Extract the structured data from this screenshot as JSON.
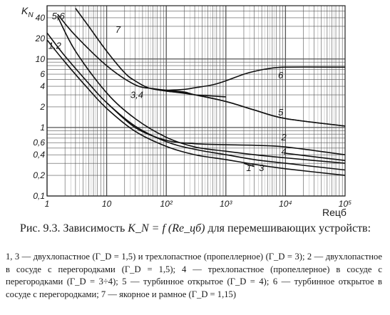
{
  "chart_data": {
    "type": "line",
    "xlabel": "Reцб",
    "ylabel": "K",
    "ylabel_sub": "N",
    "x_scale": "log",
    "y_scale": "log",
    "xlim": [
      1,
      100000
    ],
    "ylim": [
      0.1,
      60
    ],
    "grid": true,
    "x_ticks": [
      "1",
      "10",
      "10²",
      "10³",
      "10⁴",
      "10⁵"
    ],
    "y_ticks": [
      "0,1",
      "0,2",
      "0,4",
      "0,6",
      "1",
      "2",
      "4",
      "6",
      "10",
      "20",
      "40"
    ],
    "series": [
      {
        "name": "1,2",
        "label_x": 1.05,
        "label_y": 14,
        "x": [
          1,
          2,
          5,
          10,
          30,
          100,
          300,
          1000,
          3000,
          10000,
          100000
        ],
        "y": [
          24,
          11,
          4.4,
          2.3,
          1.05,
          0.62,
          0.48,
          0.4,
          0.34,
          0.3,
          0.24
        ]
      },
      {
        "name": "3",
        "label_x": 3600,
        "label_y": 0.23,
        "x": [
          1,
          2,
          5,
          10,
          30,
          100,
          300,
          1000,
          3000,
          10000,
          100000
        ],
        "y": [
          19,
          9,
          3.6,
          1.9,
          0.88,
          0.53,
          0.4,
          0.34,
          0.29,
          0.25,
          0.2
        ]
      },
      {
        "name": "3,4",
        "label_x": 25,
        "label_y": 2.7,
        "x": [
          1.5,
          3,
          10,
          30,
          100,
          300,
          1000,
          3000,
          10000,
          100000
        ],
        "y": [
          42,
          13,
          3.2,
          1.35,
          0.72,
          0.52,
          0.45,
          0.4,
          0.36,
          0.3
        ]
      },
      {
        "name": "4",
        "label_x": 8500,
        "label_y": 0.4,
        "x": [
          10000,
          100000
        ],
        "y": [
          0.42,
          0.33
        ]
      },
      {
        "name": "1'",
        "label_x": 2200,
        "label_y": 0.23,
        "x": [
          2000,
          3000
        ],
        "y": [
          0.3,
          0.27
        ]
      },
      {
        "name": "5,6",
        "label_x": 1.2,
        "label_y": 38,
        "x": [
          1.5,
          3,
          10,
          30,
          60,
          100,
          200,
          300,
          1000,
          3000,
          10000,
          100000
        ],
        "y": [
          45,
          22,
          8,
          4.2,
          3.7,
          3.5,
          3.3,
          3.0,
          2.4,
          1.8,
          1.35,
          1.05
        ]
      },
      {
        "name": "5",
        "label_x": 7500,
        "label_y": 1.5,
        "x": [
          100,
          300,
          1000,
          3000,
          10000,
          100000
        ],
        "y": [
          3.4,
          3.0,
          2.4,
          1.8,
          1.35,
          1.05
        ]
      },
      {
        "name": "2",
        "label_x": 8500,
        "label_y": 0.65,
        "x": [
          10,
          30,
          100,
          300,
          1000,
          3000,
          10000,
          100000
        ],
        "y": [
          2.3,
          1.0,
          0.65,
          0.58,
          0.56,
          0.55,
          0.52,
          0.4
        ]
      },
      {
        "name": "6",
        "label_x": 7500,
        "label_y": 5.2,
        "x": [
          100,
          200,
          300,
          600,
          1000,
          2000,
          3000,
          5000,
          10000,
          100000
        ],
        "y": [
          3.5,
          3.6,
          3.8,
          4.2,
          4.8,
          6.0,
          6.6,
          7.2,
          7.6,
          7.6
        ]
      },
      {
        "name": "7",
        "label_x": 14,
        "label_y": 24,
        "x": [
          3,
          5,
          10,
          20,
          30,
          50,
          100,
          200,
          300,
          1000
        ],
        "y": [
          55,
          30,
          13,
          6.3,
          4.8,
          3.8,
          3.4,
          3.2,
          3.0,
          2.8
        ]
      }
    ]
  },
  "caption": {
    "lead": "Рис. 9.3. Зависимость",
    "formula": "K_N = f (Re_цб)",
    "tail": "для перемешивающих устройств:"
  },
  "legend_text": "1, 3 — двухлопастное (Γ_D = 1,5) и трехлопастное (пропеллерное) (Γ_D = 3); 2 — двухлопастное в сосуде с перегородками (Γ_D = 1,5); 4 — трехлопастное (пропеллерное) в сосуде с перегородками (Γ_D = 3÷4); 5 — турбинное открытое (Γ_D = 4); 6 — турбинное открытое в сосуде с перегородками; 7 — якорное и рамное (Γ_D = 1,15)"
}
